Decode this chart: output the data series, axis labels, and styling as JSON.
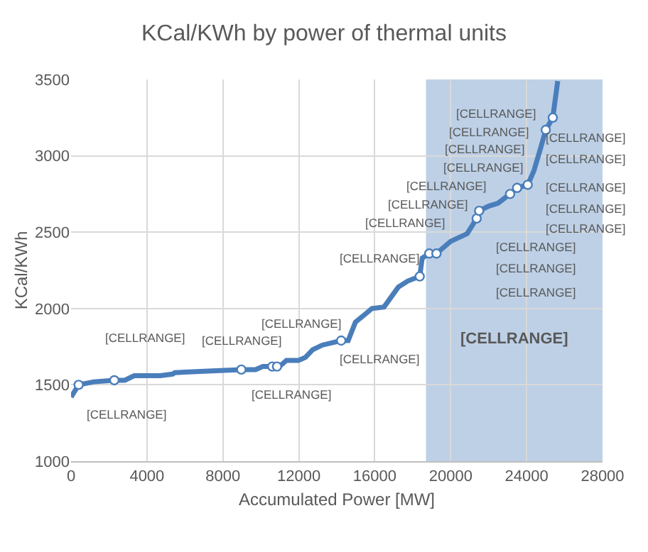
{
  "chart_data": {
    "type": "line",
    "title": "KCal/KWh by power of thermal units",
    "xlabel": "Accumulated Power [MW]",
    "ylabel": "KCal/KWh",
    "xlim": [
      0,
      28000
    ],
    "xticks": [
      0,
      4000,
      8000,
      12000,
      16000,
      20000,
      24000,
      28000
    ],
    "ylim": [
      1000,
      3500
    ],
    "yticks": [
      1000,
      1500,
      2000,
      2500,
      3000,
      3500
    ],
    "grid": true,
    "series": [
      {
        "marker": "none",
        "color": "#4a7ebb",
        "x": [
          0,
          400,
          1200,
          2280,
          2830,
          3330,
          4700,
          5340,
          5470,
          7220,
          8970,
          9720,
          10100,
          10600,
          10980,
          11350,
          11980,
          12350,
          12730,
          13230,
          14230,
          14600,
          14980,
          15470,
          15850,
          16490,
          17240,
          17740,
          18370,
          18500,
          18870,
          19250,
          20000,
          20870,
          21370,
          21500,
          22000,
          22500,
          23130,
          23500,
          24060,
          24380,
          24760,
          25010,
          25380,
          25640
        ],
        "values": [
          1420,
          1500,
          1520,
          1530,
          1530,
          1560,
          1560,
          1570,
          1580,
          1590,
          1600,
          1600,
          1620,
          1620,
          1620,
          1660,
          1660,
          1680,
          1730,
          1760,
          1790,
          1790,
          1910,
          1960,
          2000,
          2010,
          2140,
          2180,
          2210,
          2330,
          2360,
          2360,
          2440,
          2490,
          2590,
          2640,
          2670,
          2690,
          2750,
          2790,
          2810,
          2900,
          3060,
          3170,
          3250,
          3490
        ]
      },
      {
        "type": "scatter",
        "marker": "circle",
        "color": "#4a7ebb",
        "x": [
          400,
          2280,
          8970,
          10600,
          10850,
          14230,
          18370,
          18870,
          19250,
          21370,
          21500,
          23130,
          23500,
          24060,
          25010,
          25380
        ],
        "values": [
          1500,
          1530,
          1600,
          1620,
          1620,
          1790,
          2210,
          2360,
          2360,
          2590,
          2640,
          2750,
          2790,
          2810,
          3170,
          3250
        ]
      }
    ],
    "bands": [
      {
        "axis": "x",
        "from": 18700,
        "to": 28000,
        "label": "[CELLRANGE]",
        "color": "#b9cde5"
      }
    ],
    "annotations": [
      "[CELLRANGE]",
      "[CELLRANGE]",
      "[CELLRANGE]",
      "[CELLRANGE]",
      "[CELLRANGE]",
      "[CELLRANGE]",
      "[CELLRANGE]",
      "[CELLRANGE]",
      "[CELLRANGE]",
      "[CELLRANGE]",
      "[CELLRANGE]",
      "[CELLRANGE]",
      "[CELLRANGE]",
      "[CELLRANGE]",
      "[CELLRANGE]",
      "[CELLRANGE]",
      "[CELLRANGE]",
      "[CELLRANGE]",
      "[CELLRANGE]",
      "[CELLRANGE]",
      "[CELLRANGE]",
      "[CELLRANGE]"
    ]
  }
}
